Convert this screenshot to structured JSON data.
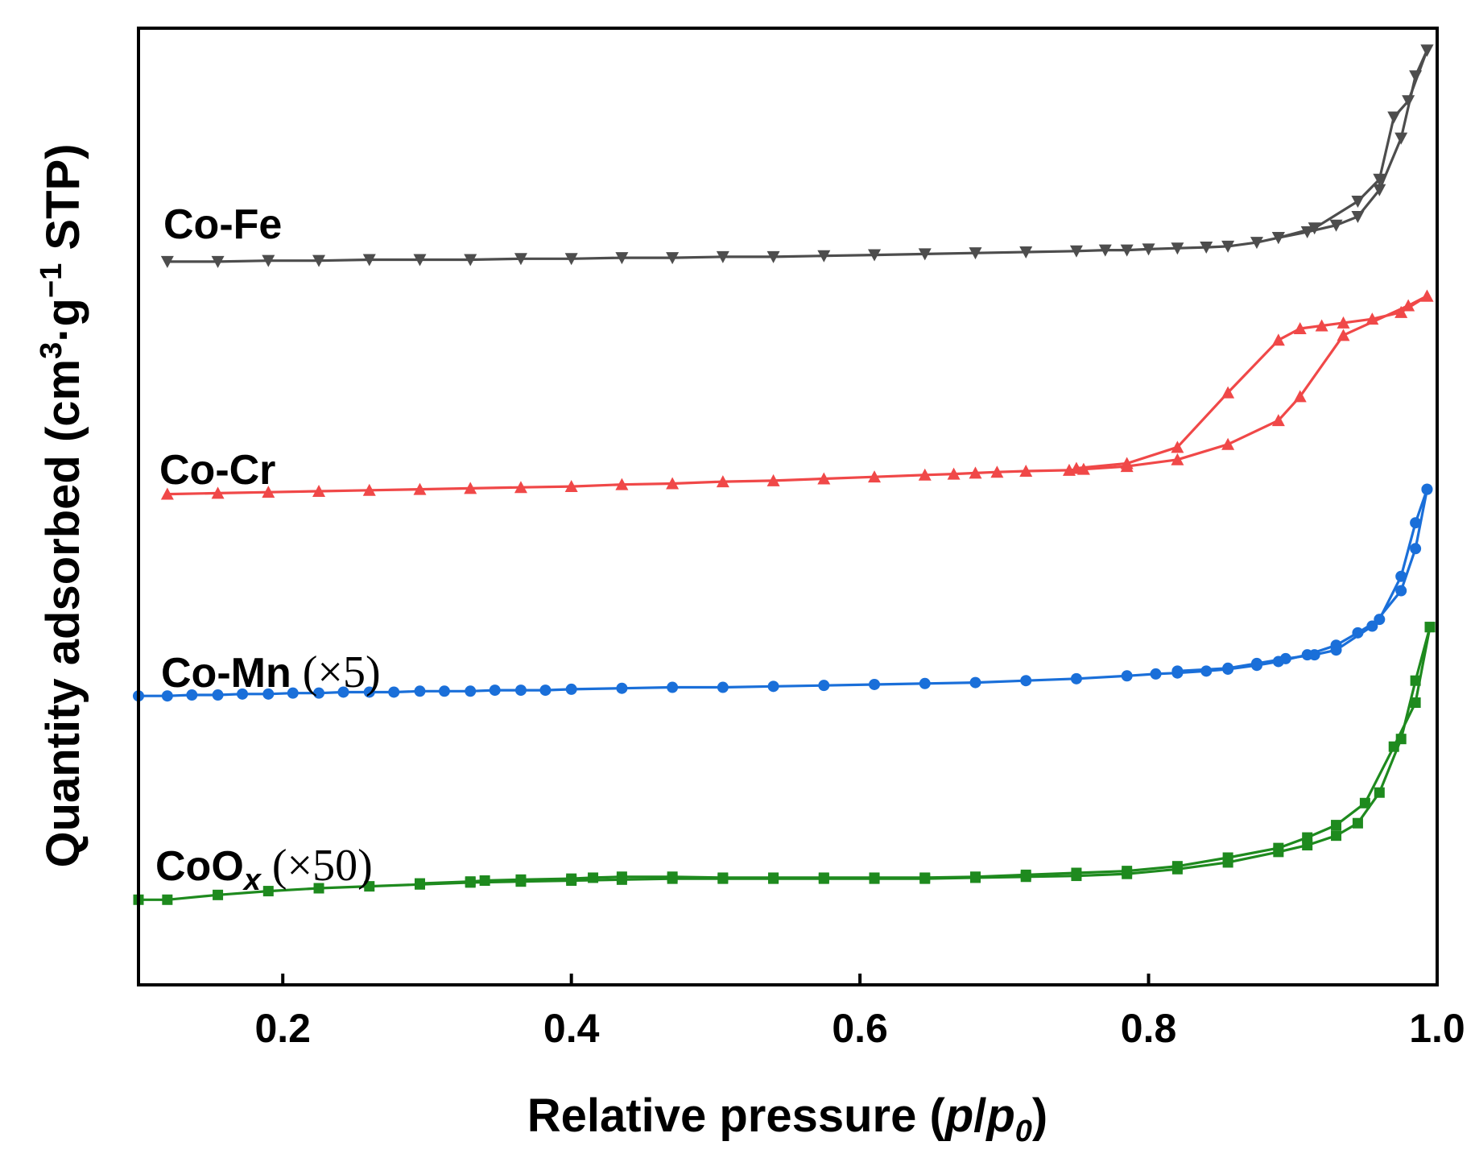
{
  "chart_data": {
    "type": "line",
    "title": "",
    "xlabel": "Relative pressure (p/p0)",
    "xlabel_parts": {
      "text": "Relative pressure (",
      "p": "p",
      "slash": "/",
      "p0_base": "p",
      "p0_sub": "0",
      "close": ")"
    },
    "ylabel": "Quantity adsorbed (cm3·g−1 STP)",
    "ylabel_parts": {
      "pre": "Quantity adsorbed (cm",
      "sup1": "3",
      "mid": "·g",
      "sup2": "−1",
      "post": " STP)"
    },
    "xlim": [
      0.1,
      1.0
    ],
    "x_ticks": [
      0.2,
      0.4,
      0.6,
      0.8,
      1.0
    ],
    "x_tick_labels": [
      "0.2",
      "0.4",
      "0.6",
      "0.8",
      "1.0"
    ],
    "y_ticks_shown": false,
    "ylim": [
      0,
      100
    ],
    "legend": "inline labels left of curves",
    "series": [
      {
        "name": "Co-Fe",
        "label_main": "Co-Fe",
        "label_extra": "",
        "label_sub": "",
        "color": "#4d4d4d",
        "marker": "triangle-down",
        "adsorption": [
          [
            0.12,
            75.6
          ],
          [
            0.155,
            75.6
          ],
          [
            0.19,
            75.7
          ],
          [
            0.225,
            75.7
          ],
          [
            0.26,
            75.8
          ],
          [
            0.295,
            75.8
          ],
          [
            0.33,
            75.8
          ],
          [
            0.365,
            75.9
          ],
          [
            0.4,
            75.9
          ],
          [
            0.435,
            76.0
          ],
          [
            0.47,
            76.0
          ],
          [
            0.505,
            76.1
          ],
          [
            0.54,
            76.1
          ],
          [
            0.575,
            76.2
          ],
          [
            0.61,
            76.3
          ],
          [
            0.645,
            76.4
          ],
          [
            0.68,
            76.5
          ],
          [
            0.715,
            76.6
          ],
          [
            0.75,
            76.7
          ],
          [
            0.77,
            76.8
          ],
          [
            0.785,
            76.8
          ],
          [
            0.8,
            76.9
          ],
          [
            0.82,
            77.0
          ],
          [
            0.84,
            77.1
          ],
          [
            0.855,
            77.2
          ],
          [
            0.875,
            77.6
          ],
          [
            0.89,
            78.1
          ],
          [
            0.91,
            78.7
          ],
          [
            0.93,
            79.4
          ],
          [
            0.945,
            80.3
          ],
          [
            0.96,
            83.1
          ],
          [
            0.975,
            88.5
          ],
          [
            0.985,
            95.0
          ],
          [
            0.993,
            97.7
          ]
        ],
        "desorption": [
          [
            0.993,
            97.7
          ],
          [
            0.98,
            92.4
          ],
          [
            0.97,
            90.7
          ],
          [
            0.96,
            84.2
          ],
          [
            0.945,
            81.9
          ],
          [
            0.915,
            79.1
          ],
          [
            0.89,
            78.1
          ]
        ]
      },
      {
        "name": "Co-Cr",
        "label_main": "Co-Cr",
        "label_extra": "",
        "label_sub": "",
        "color": "#f04848",
        "marker": "triangle-up",
        "adsorption": [
          [
            0.12,
            51.3
          ],
          [
            0.155,
            51.4
          ],
          [
            0.19,
            51.5
          ],
          [
            0.225,
            51.6
          ],
          [
            0.26,
            51.7
          ],
          [
            0.295,
            51.8
          ],
          [
            0.33,
            51.9
          ],
          [
            0.365,
            52.0
          ],
          [
            0.4,
            52.1
          ],
          [
            0.435,
            52.3
          ],
          [
            0.47,
            52.4
          ],
          [
            0.505,
            52.6
          ],
          [
            0.54,
            52.7
          ],
          [
            0.575,
            52.9
          ],
          [
            0.61,
            53.1
          ],
          [
            0.645,
            53.3
          ],
          [
            0.665,
            53.4
          ],
          [
            0.68,
            53.5
          ],
          [
            0.695,
            53.6
          ],
          [
            0.715,
            53.7
          ],
          [
            0.745,
            53.8
          ],
          [
            0.755,
            53.9
          ],
          [
            0.785,
            54.2
          ],
          [
            0.82,
            54.9
          ],
          [
            0.855,
            56.5
          ],
          [
            0.89,
            59.0
          ],
          [
            0.905,
            61.5
          ],
          [
            0.935,
            67.9
          ],
          [
            0.98,
            71.0
          ],
          [
            0.993,
            72.0
          ]
        ],
        "desorption": [
          [
            0.993,
            72.0
          ],
          [
            0.975,
            70.3
          ],
          [
            0.955,
            69.6
          ],
          [
            0.935,
            69.2
          ],
          [
            0.92,
            68.9
          ],
          [
            0.905,
            68.6
          ],
          [
            0.89,
            67.4
          ],
          [
            0.855,
            61.9
          ],
          [
            0.82,
            56.2
          ],
          [
            0.785,
            54.5
          ],
          [
            0.75,
            54.0
          ]
        ]
      },
      {
        "name": "Co-Mn",
        "label_main": "Co-Mn",
        "label_extra": "(×5)",
        "label_sub": "",
        "color": "#1a6fd9",
        "marker": "circle",
        "adsorption": [
          [
            0.1,
            30.2
          ],
          [
            0.12,
            30.2
          ],
          [
            0.137,
            30.3
          ],
          [
            0.155,
            30.3
          ],
          [
            0.172,
            30.4
          ],
          [
            0.19,
            30.4
          ],
          [
            0.207,
            30.5
          ],
          [
            0.225,
            30.5
          ],
          [
            0.242,
            30.6
          ],
          [
            0.26,
            30.6
          ],
          [
            0.277,
            30.6
          ],
          [
            0.295,
            30.7
          ],
          [
            0.312,
            30.7
          ],
          [
            0.33,
            30.7
          ],
          [
            0.347,
            30.8
          ],
          [
            0.365,
            30.8
          ],
          [
            0.382,
            30.8
          ],
          [
            0.4,
            30.9
          ],
          [
            0.435,
            31.0
          ],
          [
            0.47,
            31.1
          ],
          [
            0.505,
            31.1
          ],
          [
            0.54,
            31.2
          ],
          [
            0.575,
            31.3
          ],
          [
            0.61,
            31.4
          ],
          [
            0.645,
            31.5
          ],
          [
            0.68,
            31.6
          ],
          [
            0.715,
            31.8
          ],
          [
            0.75,
            32.0
          ],
          [
            0.785,
            32.3
          ],
          [
            0.805,
            32.5
          ],
          [
            0.82,
            32.6
          ],
          [
            0.84,
            32.8
          ],
          [
            0.855,
            33.0
          ],
          [
            0.875,
            33.4
          ],
          [
            0.89,
            33.8
          ],
          [
            0.91,
            34.5
          ],
          [
            0.93,
            35.5
          ],
          [
            0.945,
            36.8
          ],
          [
            0.96,
            38.2
          ],
          [
            0.975,
            42.7
          ],
          [
            0.985,
            48.3
          ],
          [
            0.993,
            51.8
          ]
        ],
        "desorption": [
          [
            0.993,
            51.8
          ],
          [
            0.985,
            45.6
          ],
          [
            0.975,
            41.2
          ],
          [
            0.955,
            37.5
          ],
          [
            0.93,
            35.0
          ],
          [
            0.915,
            34.5
          ],
          [
            0.895,
            34.1
          ],
          [
            0.875,
            33.6
          ],
          [
            0.855,
            33.1
          ],
          [
            0.82,
            32.8
          ]
        ]
      },
      {
        "name": "CoOx",
        "label_main": "CoO",
        "label_extra": "(×50)",
        "label_sub": "x",
        "color": "#1e8a1e",
        "marker": "square",
        "adsorption": [
          [
            0.1,
            8.9
          ],
          [
            0.12,
            8.9
          ],
          [
            0.155,
            9.4
          ],
          [
            0.19,
            9.8
          ],
          [
            0.225,
            10.1
          ],
          [
            0.26,
            10.3
          ],
          [
            0.295,
            10.5
          ],
          [
            0.33,
            10.7
          ],
          [
            0.365,
            10.8
          ],
          [
            0.4,
            10.9
          ],
          [
            0.435,
            11.0
          ],
          [
            0.47,
            11.1
          ],
          [
            0.505,
            11.1
          ],
          [
            0.54,
            11.1
          ],
          [
            0.575,
            11.1
          ],
          [
            0.61,
            11.1
          ],
          [
            0.645,
            11.1
          ],
          [
            0.68,
            11.2
          ],
          [
            0.715,
            11.3
          ],
          [
            0.75,
            11.4
          ],
          [
            0.785,
            11.6
          ],
          [
            0.82,
            12.1
          ],
          [
            0.855,
            12.8
          ],
          [
            0.89,
            13.9
          ],
          [
            0.91,
            14.6
          ],
          [
            0.93,
            15.6
          ],
          [
            0.945,
            16.9
          ],
          [
            0.96,
            20.1
          ],
          [
            0.975,
            25.7
          ],
          [
            0.985,
            31.8
          ],
          [
            0.995,
            37.4
          ]
        ],
        "desorption": [
          [
            0.995,
            37.4
          ],
          [
            0.985,
            29.5
          ],
          [
            0.97,
            24.9
          ],
          [
            0.95,
            19.0
          ],
          [
            0.93,
            16.7
          ],
          [
            0.91,
            15.4
          ],
          [
            0.89,
            14.3
          ],
          [
            0.855,
            13.3
          ],
          [
            0.82,
            12.4
          ],
          [
            0.785,
            11.9
          ],
          [
            0.75,
            11.7
          ],
          [
            0.715,
            11.5
          ],
          [
            0.68,
            11.3
          ],
          [
            0.645,
            11.2
          ],
          [
            0.61,
            11.2
          ],
          [
            0.575,
            11.2
          ],
          [
            0.54,
            11.2
          ],
          [
            0.505,
            11.2
          ],
          [
            0.47,
            11.3
          ],
          [
            0.435,
            11.3
          ],
          [
            0.415,
            11.2
          ],
          [
            0.4,
            11.1
          ],
          [
            0.365,
            11.0
          ],
          [
            0.34,
            10.9
          ],
          [
            0.33,
            10.8
          ],
          [
            0.295,
            10.6
          ]
        ]
      }
    ]
  }
}
